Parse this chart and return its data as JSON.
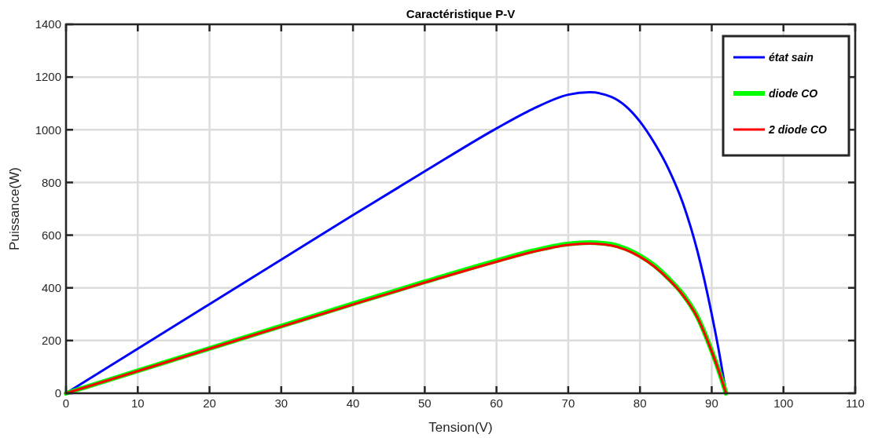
{
  "chart_data": {
    "type": "line",
    "title": "Caractéristique P-V",
    "xlabel": "Tension(V)",
    "ylabel": "Puissance(W)",
    "x": [
      0,
      10,
      20,
      30,
      40,
      50,
      60,
      65,
      70,
      73,
      76,
      78,
      80,
      82,
      84,
      86,
      88,
      90,
      91,
      92
    ],
    "series": [
      {
        "name": "état sain",
        "color": "#0000ff",
        "values": [
          0,
          169,
          338,
          507,
          676,
          842,
          1005,
          1078,
          1133,
          1142,
          1125,
          1090,
          1031,
          950,
          850,
          720,
          540,
          300,
          160,
          0
        ]
      },
      {
        "name": "diode CO",
        "color": "#00ff00",
        "values": [
          0,
          85,
          170,
          255,
          340,
          423,
          503,
          540,
          567,
          572,
          565,
          549,
          522,
          485,
          435,
          375,
          290,
          160,
          85,
          0
        ]
      },
      {
        "name": "2 diode CO",
        "color": "#ff0000",
        "values": [
          0,
          84,
          169,
          253,
          337,
          420,
          499,
          536,
          563,
          568,
          561,
          545,
          518,
          481,
          432,
          372,
          288,
          159,
          84,
          0
        ]
      }
    ],
    "xlim": [
      0,
      110
    ],
    "xticks": [
      0,
      10,
      20,
      30,
      40,
      50,
      60,
      70,
      80,
      90,
      100,
      110
    ],
    "ylim": [
      0,
      1400
    ],
    "yticks": [
      0,
      200,
      400,
      600,
      800,
      1000,
      1200,
      1400
    ],
    "grid": true,
    "legend": "top right",
    "line_style": "solid"
  }
}
